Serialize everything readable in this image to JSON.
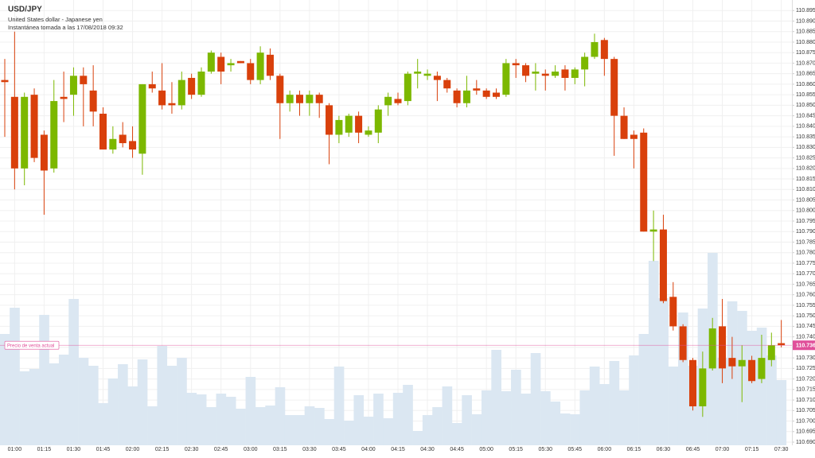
{
  "chart_data": {
    "type": "candlestick",
    "title": "USD/JPY",
    "subtitle": "United States dollar - Japanese yen",
    "snapshot": "Instantánea tomada a las 17/08/2018 09:32",
    "categories": [
      null,
      "01:00",
      null,
      null,
      "01:15",
      null,
      null,
      "01:30",
      null,
      null,
      "01:45",
      null,
      null,
      "02:00",
      null,
      null,
      "02:15",
      null,
      null,
      "02:30",
      null,
      null,
      "02:45",
      null,
      null,
      "03:00",
      null,
      null,
      "03:15",
      null,
      null,
      "03:30",
      null,
      null,
      "03:45",
      null,
      null,
      "04:00",
      null,
      null,
      "04:15",
      null,
      null,
      "04:30",
      null,
      null,
      "04:45",
      null,
      null,
      "05:00",
      null,
      null,
      "05:15",
      null,
      null,
      "05:30",
      null,
      null,
      "05:45",
      null,
      null,
      "06:00",
      null,
      null,
      "06:15",
      null,
      null,
      "06:30",
      null,
      null,
      "06:45",
      null,
      null,
      "07:00",
      null,
      null,
      "07:15",
      null,
      null,
      "07:30"
    ],
    "open": [
      110.862,
      110.854,
      110.82,
      110.855,
      110.836,
      110.82,
      110.854,
      110.855,
      110.864,
      110.857,
      110.846,
      110.829,
      110.836,
      110.833,
      110.827,
      110.86,
      110.857,
      110.851,
      110.85,
      110.863,
      110.855,
      110.866,
      110.873,
      110.869,
      110.871,
      110.87,
      110.862,
      110.874,
      110.864,
      110.851,
      110.855,
      110.851,
      110.855,
      110.85,
      110.836,
      110.837,
      110.845,
      110.836,
      110.837,
      110.85,
      110.853,
      110.852,
      110.865,
      110.864,
      110.864,
      110.862,
      110.857,
      110.851,
      110.858,
      110.857,
      110.856,
      110.855,
      110.87,
      110.869,
      110.865,
      110.865,
      110.864,
      110.867,
      110.863,
      110.867,
      110.873,
      110.881,
      110.872,
      110.845,
      110.836,
      110.837,
      110.79,
      110.791,
      110.759,
      110.745,
      110.729,
      110.707,
      110.725,
      110.745,
      110.73,
      110.726,
      110.729,
      110.72,
      110.729,
      110.737
    ],
    "close": [
      110.861,
      110.82,
      110.854,
      110.825,
      110.819,
      110.852,
      110.853,
      110.864,
      110.86,
      110.847,
      110.829,
      110.834,
      110.832,
      110.829,
      110.86,
      110.858,
      110.85,
      110.85,
      110.862,
      110.855,
      110.866,
      110.875,
      110.866,
      110.87,
      110.87,
      110.862,
      110.875,
      110.864,
      110.851,
      110.855,
      110.851,
      110.855,
      110.851,
      110.836,
      110.843,
      110.845,
      110.837,
      110.838,
      110.848,
      110.854,
      110.851,
      110.865,
      110.866,
      110.865,
      110.862,
      110.858,
      110.851,
      110.857,
      110.857,
      110.854,
      110.854,
      110.87,
      110.869,
      110.864,
      110.866,
      110.864,
      110.866,
      110.863,
      110.867,
      110.873,
      110.88,
      110.872,
      110.845,
      110.834,
      110.834,
      110.79,
      110.791,
      110.757,
      110.745,
      110.729,
      110.707,
      110.725,
      110.744,
      110.725,
      110.726,
      110.729,
      110.719,
      110.73,
      110.736,
      110.736
    ],
    "high": [
      110.872,
      110.885,
      110.856,
      110.858,
      110.838,
      110.862,
      110.866,
      110.868,
      110.868,
      110.869,
      110.849,
      110.84,
      110.842,
      110.84,
      110.86,
      110.866,
      110.87,
      110.861,
      110.866,
      110.865,
      110.868,
      110.876,
      110.875,
      110.872,
      110.871,
      110.872,
      110.878,
      110.877,
      110.865,
      110.857,
      110.857,
      110.857,
      110.856,
      110.851,
      110.845,
      110.846,
      110.847,
      110.84,
      110.85,
      110.856,
      110.856,
      110.866,
      110.872,
      110.867,
      110.866,
      110.863,
      110.858,
      110.864,
      110.862,
      110.858,
      110.858,
      110.872,
      110.872,
      110.87,
      110.87,
      110.867,
      110.869,
      110.869,
      110.868,
      110.875,
      110.884,
      110.882,
      110.873,
      110.849,
      110.838,
      110.839,
      110.8,
      110.798,
      110.766,
      110.746,
      110.73,
      110.733,
      110.749,
      110.758,
      110.74,
      110.736,
      110.731,
      110.741,
      110.742,
      110.748
    ],
    "low": [
      110.835,
      110.81,
      110.812,
      110.823,
      110.798,
      110.818,
      110.842,
      110.845,
      110.84,
      110.84,
      110.829,
      110.827,
      110.83,
      110.825,
      110.817,
      110.856,
      110.848,
      110.846,
      110.848,
      110.853,
      110.854,
      110.865,
      110.86,
      110.866,
      110.87,
      110.86,
      110.86,
      110.862,
      110.834,
      110.847,
      110.845,
      110.845,
      110.844,
      110.822,
      110.832,
      110.835,
      110.832,
      110.835,
      110.832,
      110.845,
      110.85,
      110.85,
      110.858,
      110.862,
      110.852,
      110.856,
      110.849,
      110.849,
      110.855,
      110.853,
      110.853,
      110.854,
      110.863,
      110.861,
      110.857,
      110.857,
      110.863,
      110.857,
      110.86,
      110.859,
      110.872,
      110.864,
      110.826,
      110.834,
      110.82,
      110.79,
      110.776,
      110.756,
      110.743,
      110.728,
      110.705,
      110.702,
      110.724,
      110.718,
      110.72,
      110.709,
      110.718,
      110.718,
      110.726,
      110.735
    ],
    "volume": [
      140,
      173,
      93,
      96,
      164,
      103,
      114,
      184,
      110,
      100,
      53,
      84,
      102,
      74,
      108,
      49,
      125,
      100,
      110,
      66,
      64,
      48,
      65,
      61,
      46,
      86,
      48,
      50,
      73,
      38,
      38,
      49,
      47,
      33,
      99,
      31,
      63,
      36,
      65,
      34,
      66,
      76,
      18,
      38,
      48,
      74,
      28,
      63,
      39,
      69,
      120,
      68,
      95,
      65,
      116,
      68,
      55,
      40,
      39,
      69,
      99,
      77,
      106,
      69,
      113,
      140,
      232,
      185,
      99,
      167,
      100,
      172,
      242,
      110,
      181,
      169,
      144,
      148,
      113,
      82
    ],
    "up_color": "#7cb800",
    "down_color": "#d9400b",
    "volume_color": "#dbe7f2",
    "current_price_label": "Precio de venta actual",
    "current_price": 110.736,
    "current_price_color": "#e0509a",
    "ylim": [
      110.6885,
      110.9
    ],
    "yticks": [
      {
        "value": 110.69,
        "label": "110.690"
      },
      110.695,
      {
        "value": 110.7,
        "label": "110.700"
      },
      110.705,
      {
        "value": 110.71,
        "label": "110.710"
      },
      110.715,
      {
        "value": 110.72,
        "label": "110.720"
      },
      110.725,
      {
        "value": 110.73,
        "label": "110.730"
      },
      110.735,
      {
        "value": 110.74,
        "label": "110.740"
      },
      110.745,
      {
        "value": 110.75,
        "label": "110.750"
      },
      110.755,
      {
        "value": 110.76,
        "label": "110.760"
      },
      110.765,
      {
        "value": 110.77,
        "label": "110.770"
      },
      110.775,
      {
        "value": 110.78,
        "label": "110.780"
      },
      110.785,
      {
        "value": 110.79,
        "label": "110.790"
      },
      110.795,
      {
        "value": 110.8,
        "label": "110.800"
      },
      110.805,
      {
        "value": 110.81,
        "label": "110.810"
      },
      110.815,
      {
        "value": 110.82,
        "label": "110.820"
      },
      110.825,
      {
        "value": 110.83,
        "label": "110.830"
      },
      110.835,
      {
        "value": 110.84,
        "label": "110.840"
      },
      110.845,
      {
        "value": 110.85,
        "label": "110.850"
      },
      110.855,
      {
        "value": 110.86,
        "label": "110.860"
      },
      110.865,
      {
        "value": 110.87,
        "label": "110.870"
      },
      110.875,
      {
        "value": 110.88,
        "label": "110.880"
      },
      110.885,
      {
        "value": 110.89,
        "label": "110.890"
      },
      110.895
    ],
    "grid": true
  }
}
